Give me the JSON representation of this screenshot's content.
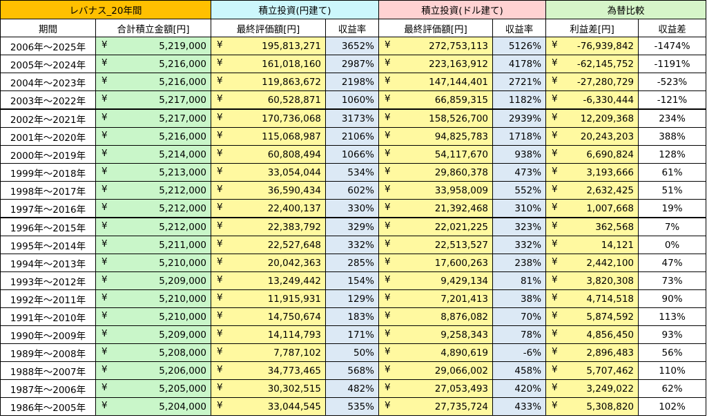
{
  "groups": {
    "g1": "レバナス_20年間",
    "g2": "積立投資(円建て)",
    "g3": "積立投資(ドル建て)",
    "g4": "為替比較"
  },
  "columns": {
    "c1": "期間",
    "c2": "合計積立金額[円]",
    "c3": "最終評価額[円]",
    "c4": "収益率",
    "c5": "最終評価額[円]",
    "c6": "収益率",
    "c7": "利益差[円]",
    "c8": "収益差"
  },
  "currency_symbol": "¥",
  "rows": [
    {
      "period": "2006年～2025年",
      "total": "5,219,000",
      "jpy_final": "195,813,271",
      "jpy_rate": "3652%",
      "usd_final": "272,753,113",
      "usd_rate": "5126%",
      "diff": "-76,939,842",
      "rate_diff": "-1474%"
    },
    {
      "period": "2005年～2024年",
      "total": "5,216,000",
      "jpy_final": "161,018,160",
      "jpy_rate": "2987%",
      "usd_final": "223,163,912",
      "usd_rate": "4178%",
      "diff": "-62,145,752",
      "rate_diff": "-1191%"
    },
    {
      "period": "2004年～2023年",
      "total": "5,216,000",
      "jpy_final": "119,863,672",
      "jpy_rate": "2198%",
      "usd_final": "147,144,401",
      "usd_rate": "2721%",
      "diff": "-27,280,729",
      "rate_diff": "-523%"
    },
    {
      "period": "2003年～2022年",
      "total": "5,217,000",
      "jpy_final": "60,528,871",
      "jpy_rate": "1060%",
      "usd_final": "66,859,315",
      "usd_rate": "1182%",
      "diff": "-6,330,444",
      "rate_diff": "-121%"
    },
    {
      "period": "2002年～2021年",
      "total": "5,217,000",
      "jpy_final": "170,736,068",
      "jpy_rate": "3173%",
      "usd_final": "158,526,700",
      "usd_rate": "2939%",
      "diff": "12,209,368",
      "rate_diff": "234%"
    },
    {
      "period": "2001年～2020年",
      "total": "5,216,000",
      "jpy_final": "115,068,987",
      "jpy_rate": "2106%",
      "usd_final": "94,825,783",
      "usd_rate": "1718%",
      "diff": "20,243,203",
      "rate_diff": "388%"
    },
    {
      "period": "2000年～2019年",
      "total": "5,214,000",
      "jpy_final": "60,808,494",
      "jpy_rate": "1066%",
      "usd_final": "54,117,670",
      "usd_rate": "938%",
      "diff": "6,690,824",
      "rate_diff": "128%"
    },
    {
      "period": "1999年～2018年",
      "total": "5,213,000",
      "jpy_final": "33,054,044",
      "jpy_rate": "534%",
      "usd_final": "29,860,378",
      "usd_rate": "473%",
      "diff": "3,193,666",
      "rate_diff": "61%"
    },
    {
      "period": "1998年～2017年",
      "total": "5,212,000",
      "jpy_final": "36,590,434",
      "jpy_rate": "602%",
      "usd_final": "33,958,009",
      "usd_rate": "552%",
      "diff": "2,632,425",
      "rate_diff": "51%"
    },
    {
      "period": "1997年～2016年",
      "total": "5,212,000",
      "jpy_final": "22,400,137",
      "jpy_rate": "330%",
      "usd_final": "21,392,468",
      "usd_rate": "310%",
      "diff": "1,007,668",
      "rate_diff": "19%"
    },
    {
      "period": "1996年～2015年",
      "total": "5,212,000",
      "jpy_final": "22,383,792",
      "jpy_rate": "329%",
      "usd_final": "22,021,225",
      "usd_rate": "323%",
      "diff": "362,568",
      "rate_diff": "7%"
    },
    {
      "period": "1995年～2014年",
      "total": "5,211,000",
      "jpy_final": "22,527,648",
      "jpy_rate": "332%",
      "usd_final": "22,513,527",
      "usd_rate": "332%",
      "diff": "14,121",
      "rate_diff": "0%"
    },
    {
      "period": "1994年～2013年",
      "total": "5,210,000",
      "jpy_final": "20,042,363",
      "jpy_rate": "285%",
      "usd_final": "17,600,263",
      "usd_rate": "238%",
      "diff": "2,442,100",
      "rate_diff": "47%"
    },
    {
      "period": "1993年～2012年",
      "total": "5,209,000",
      "jpy_final": "13,249,442",
      "jpy_rate": "154%",
      "usd_final": "9,429,134",
      "usd_rate": "81%",
      "diff": "3,820,308",
      "rate_diff": "73%"
    },
    {
      "period": "1992年～2011年",
      "total": "5,210,000",
      "jpy_final": "11,915,931",
      "jpy_rate": "129%",
      "usd_final": "7,201,413",
      "usd_rate": "38%",
      "diff": "4,714,518",
      "rate_diff": "90%"
    },
    {
      "period": "1991年～2010年",
      "total": "5,210,000",
      "jpy_final": "14,750,674",
      "jpy_rate": "183%",
      "usd_final": "8,876,082",
      "usd_rate": "70%",
      "diff": "5,874,592",
      "rate_diff": "113%"
    },
    {
      "period": "1990年～2009年",
      "total": "5,209,000",
      "jpy_final": "14,114,793",
      "jpy_rate": "171%",
      "usd_final": "9,258,343",
      "usd_rate": "78%",
      "diff": "4,856,450",
      "rate_diff": "93%"
    },
    {
      "period": "1989年～2008年",
      "total": "5,208,000",
      "jpy_final": "7,787,102",
      "jpy_rate": "50%",
      "usd_final": "4,890,619",
      "usd_rate": "-6%",
      "diff": "2,896,483",
      "rate_diff": "56%"
    },
    {
      "period": "1988年～2007年",
      "total": "5,206,000",
      "jpy_final": "34,773,465",
      "jpy_rate": "568%",
      "usd_final": "29,066,002",
      "usd_rate": "458%",
      "diff": "5,707,462",
      "rate_diff": "110%"
    },
    {
      "period": "1987年～2006年",
      "total": "5,205,000",
      "jpy_final": "30,302,515",
      "jpy_rate": "482%",
      "usd_final": "27,053,493",
      "usd_rate": "420%",
      "diff": "3,249,022",
      "rate_diff": "62%"
    },
    {
      "period": "1986年～2005年",
      "total": "5,204,000",
      "jpy_final": "33,044,545",
      "jpy_rate": "535%",
      "usd_final": "27,735,724",
      "usd_rate": "433%",
      "diff": "5,308,820",
      "rate_diff": "102%"
    }
  ]
}
